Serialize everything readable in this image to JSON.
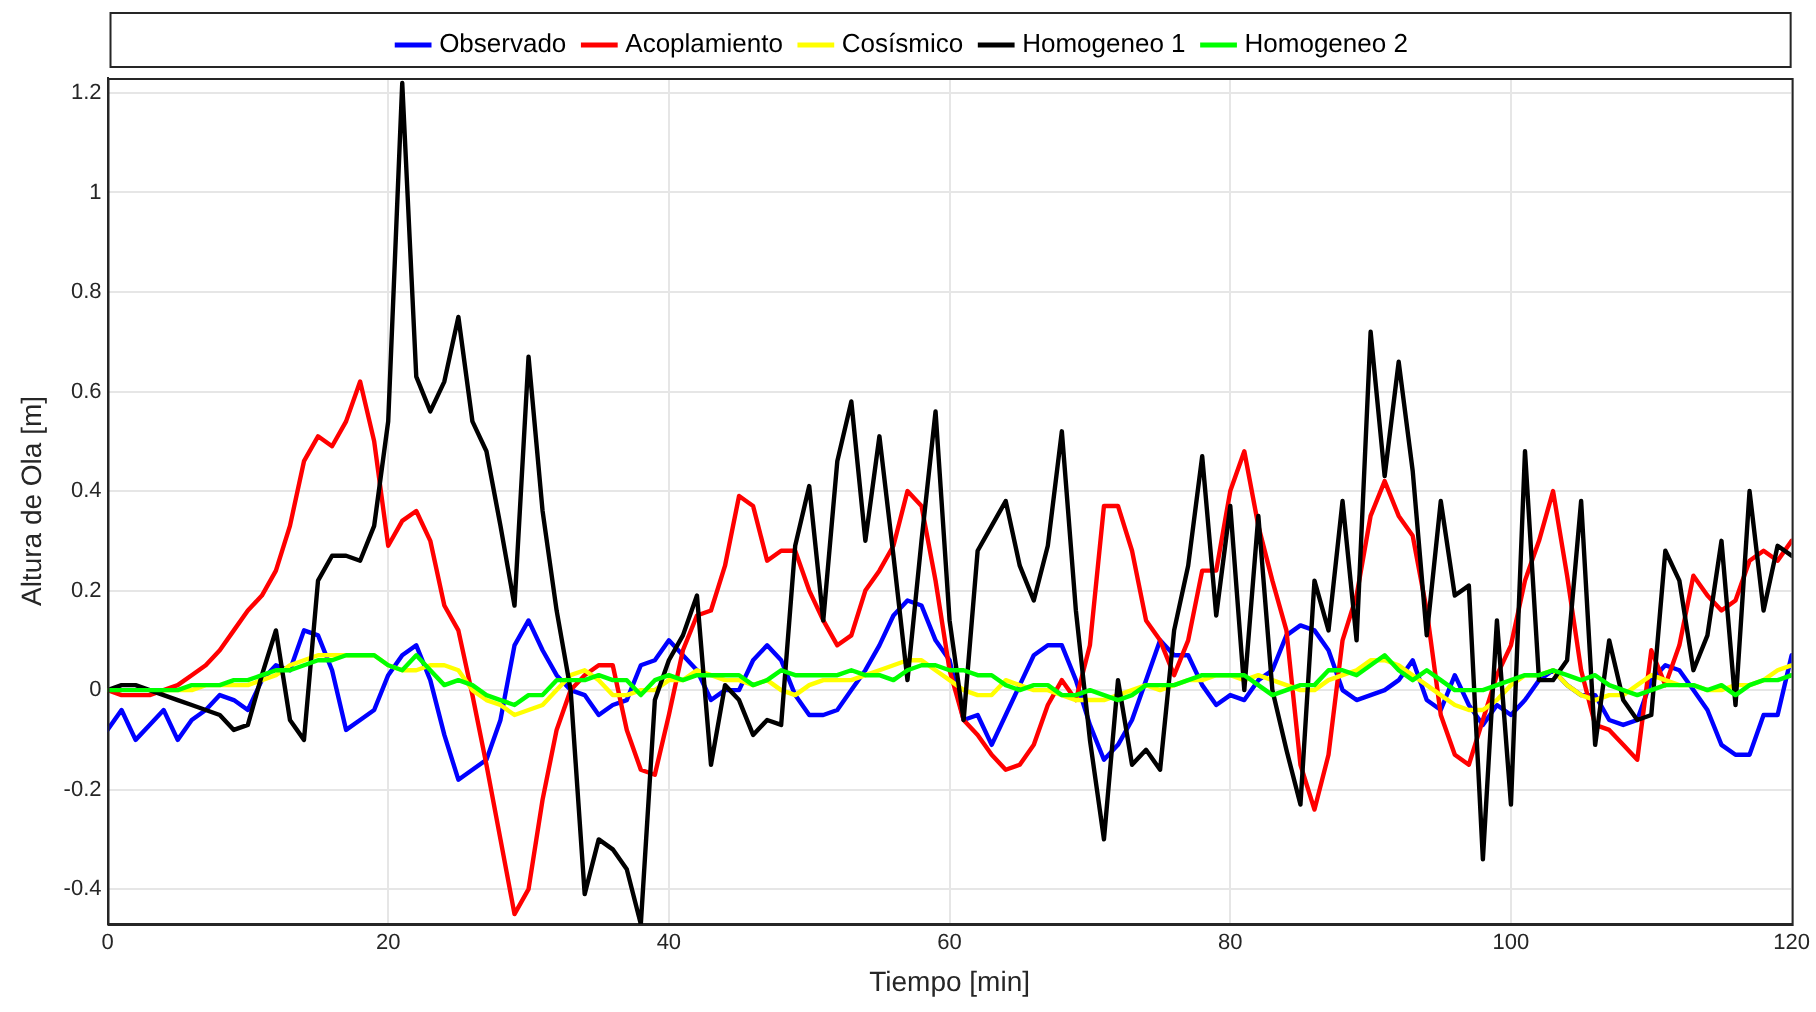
{
  "chart_data": {
    "type": "line",
    "xlabel": "Tiempo [min]",
    "ylabel": "Altura de Ola [m]",
    "x": [
      0,
      1,
      2,
      3,
      4,
      5,
      6,
      7,
      8,
      9,
      10,
      11,
      12,
      13,
      14,
      15,
      16,
      17,
      18,
      19,
      20,
      21,
      22,
      23,
      24,
      25,
      26,
      27,
      28,
      29,
      30,
      31,
      32,
      33,
      34,
      35,
      36,
      37,
      38,
      39,
      40,
      41,
      42,
      43,
      44,
      45,
      46,
      47,
      48,
      49,
      50,
      51,
      52,
      53,
      54,
      55,
      56,
      57,
      58,
      59,
      60,
      61,
      62,
      63,
      64,
      65,
      66,
      67,
      68,
      69,
      70,
      71,
      72,
      73,
      74,
      75,
      76,
      77,
      78,
      79,
      80,
      81,
      82,
      83,
      84,
      85,
      86,
      87,
      88,
      89,
      90,
      91,
      92,
      93,
      94,
      95,
      96,
      97,
      98,
      99,
      100,
      101,
      102,
      103,
      104,
      105,
      106,
      107,
      108,
      109,
      110,
      111,
      112,
      113,
      114,
      115,
      116,
      117,
      118,
      119,
      120
    ],
    "xlim": [
      0,
      120
    ],
    "xticks": [
      0,
      20,
      40,
      60,
      80,
      100,
      120
    ],
    "ylim": [
      -0.47,
      1.23
    ],
    "yticks": [
      -0.4,
      -0.2,
      0,
      0.2,
      0.4,
      0.6,
      0.8,
      1,
      1.2
    ],
    "grid": true,
    "legend": "top",
    "marker": "none",
    "line_style": "solid",
    "series": [
      {
        "name": "Observado",
        "color": "#0000ff",
        "values": [
          -0.08,
          -0.04,
          -0.1,
          -0.07,
          -0.04,
          -0.1,
          -0.06,
          -0.04,
          -0.01,
          -0.02,
          -0.04,
          0.02,
          0.05,
          0.04,
          0.12,
          0.11,
          0.04,
          -0.08,
          -0.06,
          -0.04,
          0.03,
          0.07,
          0.09,
          0.02,
          -0.09,
          -0.18,
          -0.16,
          -0.14,
          -0.06,
          0.09,
          0.14,
          0.08,
          0.03,
          0,
          -0.01,
          -0.05,
          -0.03,
          -0.02,
          0.05,
          0.06,
          0.1,
          0.07,
          0.04,
          -0.02,
          0,
          0,
          0.06,
          0.09,
          0.06,
          -0.01,
          -0.05,
          -0.05,
          -0.04,
          0,
          0.04,
          0.09,
          0.15,
          0.18,
          0.17,
          0.1,
          0.06,
          -0.06,
          -0.05,
          -0.11,
          -0.05,
          0.01,
          0.07,
          0.09,
          0.09,
          0.02,
          -0.07,
          -0.14,
          -0.11,
          -0.06,
          0.02,
          0.1,
          0.07,
          0.07,
          0.01,
          -0.03,
          -0.01,
          -0.02,
          0.02,
          0.04,
          0.11,
          0.13,
          0.12,
          0.08,
          0,
          -0.02,
          -0.01,
          0,
          0.02,
          0.06,
          -0.02,
          -0.04,
          0.03,
          -0.03,
          -0.07,
          -0.03,
          -0.05,
          -0.02,
          0.02,
          0.04,
          0.01,
          -0.01,
          -0.01,
          -0.06,
          -0.07,
          -0.06,
          0.02,
          0.05,
          0.04,
          0,
          -0.04,
          -0.11,
          -0.13,
          -0.13,
          -0.05,
          -0.05,
          0.07
        ]
      },
      {
        "name": "Acoplamiento",
        "color": "#ff0000",
        "values": [
          0,
          -0.01,
          -0.01,
          -0.01,
          0,
          0.01,
          0.03,
          0.05,
          0.08,
          0.12,
          0.16,
          0.19,
          0.24,
          0.33,
          0.46,
          0.51,
          0.49,
          0.54,
          0.62,
          0.5,
          0.29,
          0.34,
          0.36,
          0.3,
          0.17,
          0.12,
          -0.01,
          -0.15,
          -0.3,
          -0.45,
          -0.4,
          -0.22,
          -0.08,
          0,
          0.03,
          0.05,
          0.05,
          -0.08,
          -0.16,
          -0.17,
          -0.05,
          0.08,
          0.15,
          0.16,
          0.25,
          0.39,
          0.37,
          0.26,
          0.28,
          0.28,
          0.2,
          0.14,
          0.09,
          0.11,
          0.2,
          0.24,
          0.29,
          0.4,
          0.37,
          0.22,
          0.04,
          -0.06,
          -0.09,
          -0.13,
          -0.16,
          -0.15,
          -0.11,
          -0.03,
          0.02,
          -0.02,
          0.09,
          0.37,
          0.37,
          0.28,
          0.14,
          0.1,
          0.03,
          0.1,
          0.24,
          0.24,
          0.4,
          0.48,
          0.33,
          0.22,
          0.12,
          -0.15,
          -0.24,
          -0.13,
          0.1,
          0.19,
          0.35,
          0.42,
          0.35,
          0.31,
          0.16,
          -0.05,
          -0.13,
          -0.15,
          -0.06,
          0.03,
          0.09,
          0.22,
          0.3,
          0.4,
          0.23,
          0.04,
          -0.07,
          -0.08,
          -0.11,
          -0.14,
          0.08,
          0.01,
          0.09,
          0.23,
          0.19,
          0.16,
          0.18,
          0.26,
          0.28,
          0.26,
          0.3
        ]
      },
      {
        "name": "Cosísmico",
        "color": "#ffff00",
        "values": [
          null,
          null,
          null,
          null,
          0,
          0,
          0,
          0.01,
          0.01,
          0.01,
          0.01,
          0.02,
          0.03,
          0.05,
          0.06,
          0.07,
          0.07,
          0.07,
          0.07,
          0.07,
          0.05,
          0.04,
          0.04,
          0.05,
          0.05,
          0.04,
          0,
          -0.02,
          -0.03,
          -0.05,
          -0.04,
          -0.03,
          0,
          0.03,
          0.04,
          0.02,
          -0.01,
          -0.01,
          0,
          0,
          0.02,
          0.02,
          0.04,
          0.03,
          0.02,
          0.02,
          0.01,
          0.02,
          0,
          -0.01,
          0.01,
          0.02,
          0.02,
          0.02,
          0.03,
          0.04,
          0.05,
          0.06,
          0.06,
          0.04,
          0.02,
          0,
          -0.01,
          -0.01,
          0.02,
          0.01,
          0,
          0,
          -0.01,
          -0.02,
          -0.02,
          -0.02,
          -0.01,
          0,
          0.01,
          0,
          0.01,
          0.02,
          0.02,
          0.03,
          0.03,
          0.02,
          0.03,
          0.02,
          0.01,
          0,
          0,
          0.02,
          0.03,
          0.04,
          0.06,
          0.06,
          0.05,
          0.03,
          0.01,
          -0.01,
          -0.03,
          -0.04,
          -0.04,
          -0.02,
          0.01,
          0.03,
          0.03,
          0.04,
          0.01,
          -0.01,
          -0.02,
          -0.01,
          -0.01,
          0.01,
          0.03,
          0.02,
          0.01,
          0.01,
          0,
          0,
          0.01,
          0.01,
          0.02,
          0.04,
          0.05
        ]
      },
      {
        "name": "Homogeneo 1",
        "color": "#000000",
        "values": [
          0,
          0.01,
          0.01,
          0,
          -0.01,
          -0.02,
          -0.03,
          -0.04,
          -0.05,
          -0.08,
          -0.07,
          0.03,
          0.12,
          -0.06,
          -0.1,
          0.22,
          0.27,
          0.27,
          0.26,
          0.33,
          0.54,
          1.22,
          0.63,
          0.56,
          0.62,
          0.75,
          0.54,
          0.48,
          0.33,
          0.17,
          0.67,
          0.36,
          0.16,
          0,
          -0.41,
          -0.3,
          -0.32,
          -0.36,
          -0.47,
          -0.02,
          0.06,
          0.11,
          0.19,
          -0.15,
          0.01,
          -0.02,
          -0.09,
          -0.06,
          -0.07,
          0.29,
          0.41,
          0.14,
          0.46,
          0.58,
          0.3,
          0.51,
          0.27,
          0.02,
          0.3,
          0.56,
          0.14,
          -0.06,
          0.28,
          0.33,
          0.38,
          0.25,
          0.18,
          0.29,
          0.52,
          0.16,
          -0.1,
          -0.3,
          0.02,
          -0.15,
          -0.12,
          -0.16,
          0.12,
          0.25,
          0.47,
          0.15,
          0.37,
          0,
          0.35,
          0,
          -0.12,
          -0.23,
          0.22,
          0.12,
          0.38,
          0.1,
          0.72,
          0.43,
          0.66,
          0.44,
          0.11,
          0.38,
          0.19,
          0.21,
          -0.34,
          0.14,
          -0.23,
          0.48,
          0.02,
          0.02,
          0.06,
          0.38,
          -0.11,
          0.1,
          -0.02,
          -0.06,
          -0.05,
          0.28,
          0.22,
          0.04,
          0.11,
          0.3,
          -0.03,
          0.4,
          0.16,
          0.29,
          0.27
        ]
      },
      {
        "name": "Homogeneo 2",
        "color": "#00ff00",
        "values": [
          0,
          0,
          0,
          0,
          0,
          0,
          0.01,
          0.01,
          0.01,
          0.02,
          0.02,
          0.03,
          0.04,
          0.04,
          0.05,
          0.06,
          0.06,
          0.07,
          0.07,
          0.07,
          0.05,
          0.04,
          0.07,
          0.04,
          0.01,
          0.02,
          0.01,
          -0.01,
          -0.02,
          -0.03,
          -0.01,
          -0.01,
          0.02,
          0.02,
          0.02,
          0.03,
          0.02,
          0.02,
          -0.01,
          0.02,
          0.03,
          0.02,
          0.03,
          0.03,
          0.03,
          0.03,
          0.01,
          0.02,
          0.04,
          0.03,
          0.03,
          0.03,
          0.03,
          0.04,
          0.03,
          0.03,
          0.02,
          0.04,
          0.05,
          0.05,
          0.04,
          0.04,
          0.03,
          0.03,
          0.01,
          0,
          0.01,
          0.01,
          -0.01,
          -0.01,
          0,
          -0.01,
          -0.02,
          -0.01,
          0.01,
          0.01,
          0.01,
          0.02,
          0.03,
          0.03,
          0.03,
          0.03,
          0.01,
          -0.01,
          0,
          0.01,
          0.01,
          0.04,
          0.04,
          0.03,
          0.05,
          0.07,
          0.04,
          0.02,
          0.04,
          0.02,
          0,
          0,
          0,
          0.01,
          0.02,
          0.03,
          0.03,
          0.04,
          0.03,
          0.02,
          0.03,
          0.01,
          0,
          -0.01,
          0,
          0.01,
          0.01,
          0.01,
          0,
          0.01,
          -0.01,
          0.01,
          0.02,
          0.02,
          0.03
        ]
      }
    ]
  }
}
